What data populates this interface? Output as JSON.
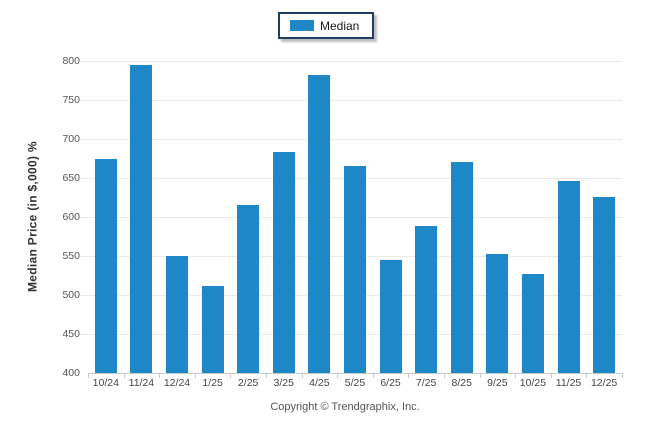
{
  "legend": {
    "label": "Median",
    "border_color": "#1e3c64",
    "swatch_icon": "blue-rectangle"
  },
  "footer": {
    "copyright": "Copyright © Trendgraphix, Inc."
  },
  "chart_data": {
    "type": "bar",
    "title": "",
    "xlabel": "",
    "ylabel": "Median Price (in $,000) %",
    "categories": [
      "10/24",
      "11/24",
      "12/24",
      "1/25",
      "2/25",
      "3/25",
      "4/25",
      "5/25",
      "6/25",
      "7/25",
      "8/25",
      "9/25",
      "10/25",
      "11/25",
      "12/25"
    ],
    "series": [
      {
        "name": "Median",
        "color": "#1e87c8",
        "values": [
          675,
          795,
          550,
          511,
          616,
          683,
          782,
          666,
          545,
          589,
          671,
          553,
          527,
          646,
          626
        ]
      }
    ],
    "ylim": [
      400,
      800
    ],
    "yticks": [
      400,
      450,
      500,
      550,
      600,
      650,
      700,
      750,
      800
    ],
    "grid": "horizontal-only",
    "gridline_color": "#eaeaea",
    "axis_color": "#c9c9c9",
    "legend_position": "top-center"
  }
}
